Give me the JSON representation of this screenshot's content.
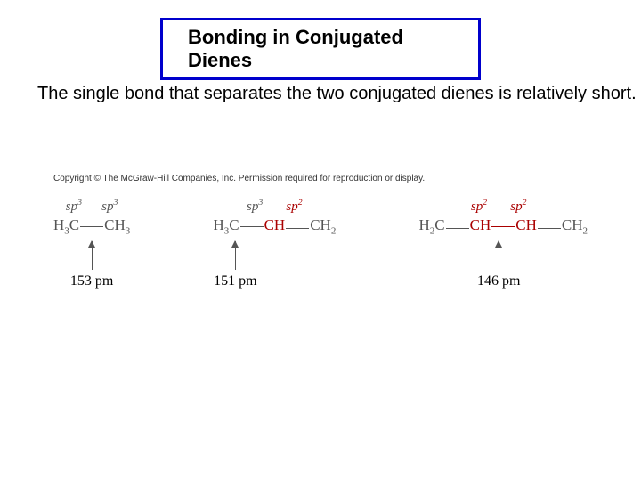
{
  "title": "Bonding in Conjugated Dienes",
  "body": "The single bond that separates the two conjugated dienes is relatively short.",
  "diagram": {
    "copyright": "Copyright © The McGraw-Hill Companies, Inc. Permission required for reproduction or display.",
    "molecules": [
      {
        "hyb1": "sp",
        "hyb1_sup": "3",
        "hyb2": "sp",
        "hyb2_sup": "3",
        "length": "153 pm"
      },
      {
        "hyb1": "sp",
        "hyb1_sup": "3",
        "hyb2": "sp",
        "hyb2_sup": "2",
        "length": "151 pm"
      },
      {
        "hyb1": "sp",
        "hyb1_sup": "2",
        "hyb2": "sp",
        "hyb2_sup": "2",
        "length": "146 pm"
      }
    ],
    "colors": {
      "grey_text": "#555555",
      "red_text": "#aa0000",
      "title_border": "#0000cc",
      "background": "#ffffff"
    }
  }
}
